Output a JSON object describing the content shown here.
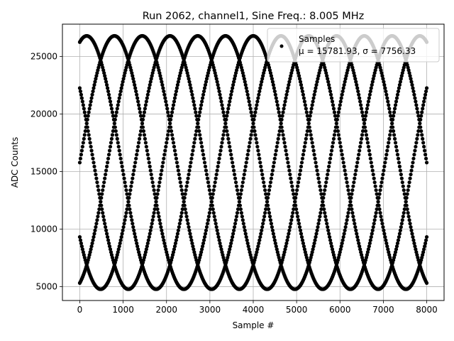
{
  "chart_data": {
    "type": "scatter",
    "title": "Run 2062, channel1, Sine Freq.: 8.005 MHz",
    "xlabel": "Sample #",
    "ylabel": "ADC Counts",
    "xlim": [
      -400,
      8400
    ],
    "ylim": [
      3800,
      27800
    ],
    "xticks": [
      0,
      1000,
      2000,
      3000,
      4000,
      5000,
      6000,
      7000,
      8000
    ],
    "yticks": [
      5000,
      10000,
      15000,
      20000,
      25000
    ],
    "grid": true,
    "legend_position": "top-right",
    "marker_color": "#000000",
    "series": [
      {
        "name": "Samples",
        "signal": {
          "mean": 15781.93,
          "amplitude": 11000,
          "period_samples": 3200,
          "phase_offsets_samples": [
            0,
            640,
            1280,
            1920,
            2560
          ],
          "x_range": [
            0,
            8000
          ]
        }
      }
    ],
    "legend": {
      "label": "Samples",
      "stats": "μ = 15781.93, σ = 7756.33"
    }
  }
}
